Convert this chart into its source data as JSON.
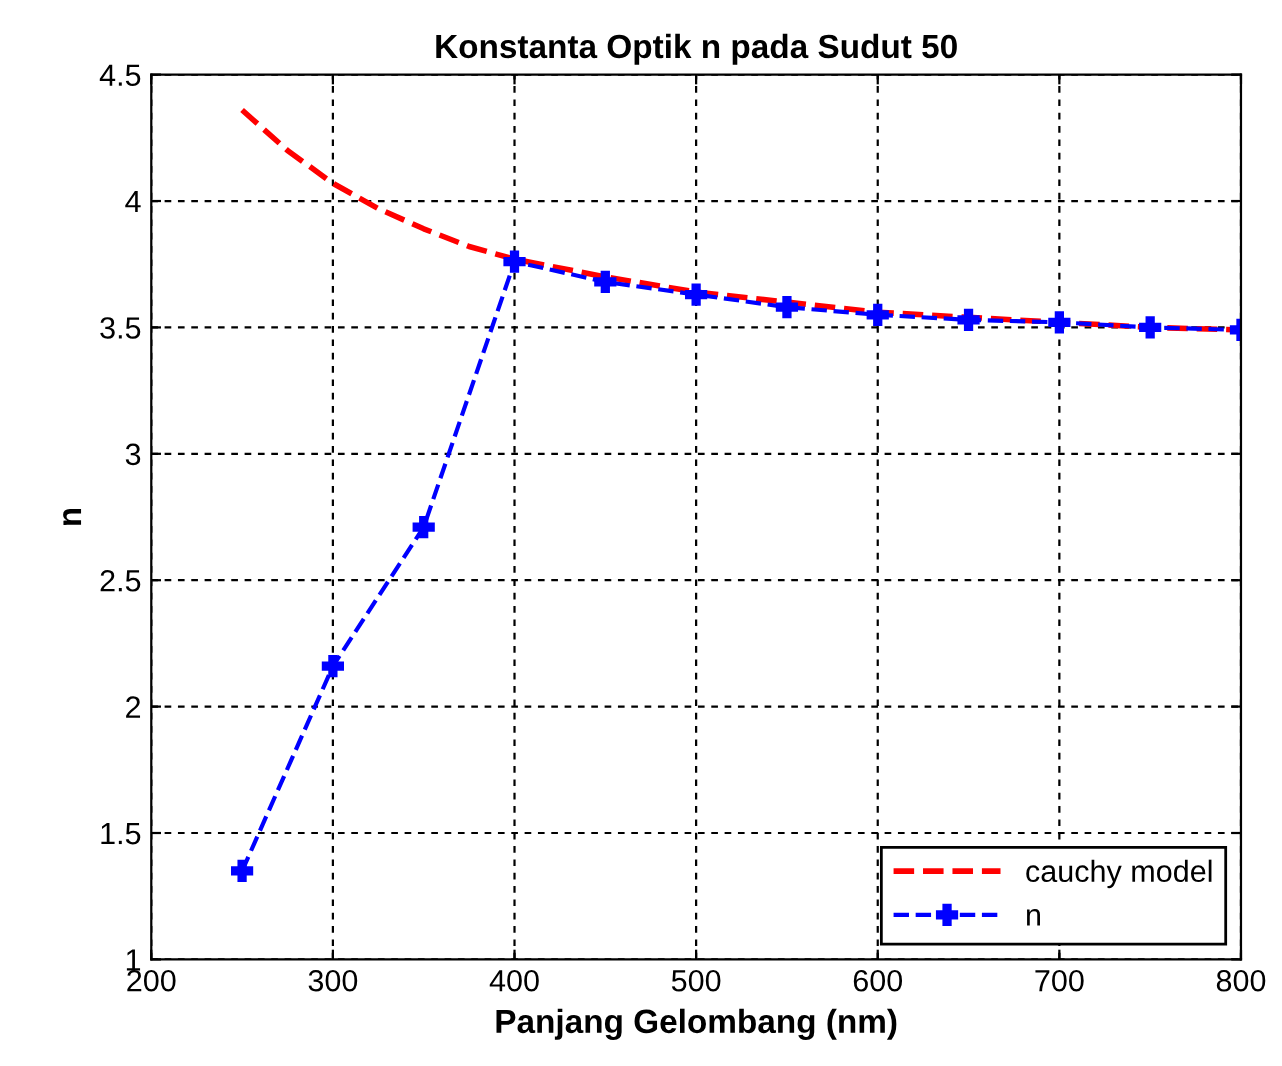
{
  "chart_data": {
    "type": "line",
    "title": "Konstanta Optik n pada Sudut 50",
    "xlabel": "Panjang Gelombang (nm)",
    "ylabel": "n",
    "xlim": [
      200,
      800
    ],
    "xticks": [
      200,
      300,
      400,
      500,
      600,
      700,
      800
    ],
    "ylim": [
      1,
      4.5
    ],
    "yticks": [
      1,
      1.5,
      2,
      2.5,
      3,
      3.5,
      4,
      4.5
    ],
    "grid": true,
    "legend": "bottom right",
    "line_style": "dashed",
    "series": [
      {
        "name": "cauchy model",
        "color": "#ff0000",
        "marker": "none",
        "x": [
          250,
          275,
          300,
          325,
          350,
          375,
          400,
          450,
          500,
          550,
          600,
          650,
          700,
          750,
          800
        ],
        "values": [
          4.36,
          4.2,
          4.07,
          3.97,
          3.89,
          3.82,
          3.77,
          3.7,
          3.64,
          3.6,
          3.56,
          3.54,
          3.52,
          3.5,
          3.49
        ]
      },
      {
        "name": "n",
        "color": "#0000ff",
        "marker": "cross",
        "x": [
          250,
          300,
          350,
          400,
          450,
          500,
          550,
          600,
          650,
          700,
          750,
          800
        ],
        "values": [
          1.35,
          2.16,
          2.71,
          3.76,
          3.68,
          3.63,
          3.58,
          3.55,
          3.53,
          3.52,
          3.5,
          3.49
        ]
      }
    ]
  }
}
